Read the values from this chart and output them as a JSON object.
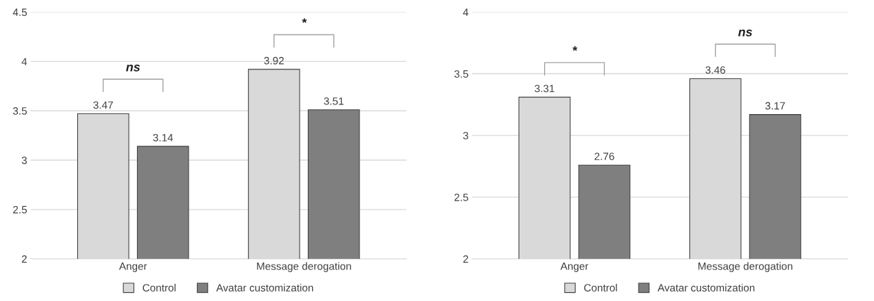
{
  "chart_data": [
    {
      "type": "bar",
      "categories": [
        "Anger",
        "Message derogation"
      ],
      "series": [
        {
          "name": "Control",
          "color": "#d9d9d9",
          "values": [
            3.47,
            3.92
          ]
        },
        {
          "name": "Avatar customization",
          "color": "#7f7f7f",
          "values": [
            3.14,
            3.51
          ]
        }
      ],
      "ylim": [
        2,
        4.5
      ],
      "yticks": [
        2,
        2.5,
        3,
        3.5,
        4,
        4.5
      ],
      "grid": "y",
      "legend": "bottom",
      "data_labels": true,
      "annotations": [
        "ns",
        "*"
      ]
    },
    {
      "type": "bar",
      "categories": [
        "Anger",
        "Message derogation"
      ],
      "series": [
        {
          "name": "Control",
          "color": "#d9d9d9",
          "values": [
            3.31,
            3.46
          ]
        },
        {
          "name": "Avatar customization",
          "color": "#7f7f7f",
          "values": [
            2.76,
            3.17
          ]
        }
      ],
      "ylim": [
        2,
        4
      ],
      "yticks": [
        2,
        2.5,
        3,
        3.5,
        4
      ],
      "grid": "y",
      "legend": "bottom",
      "data_labels": true,
      "annotations": [
        "*",
        "ns"
      ]
    }
  ]
}
